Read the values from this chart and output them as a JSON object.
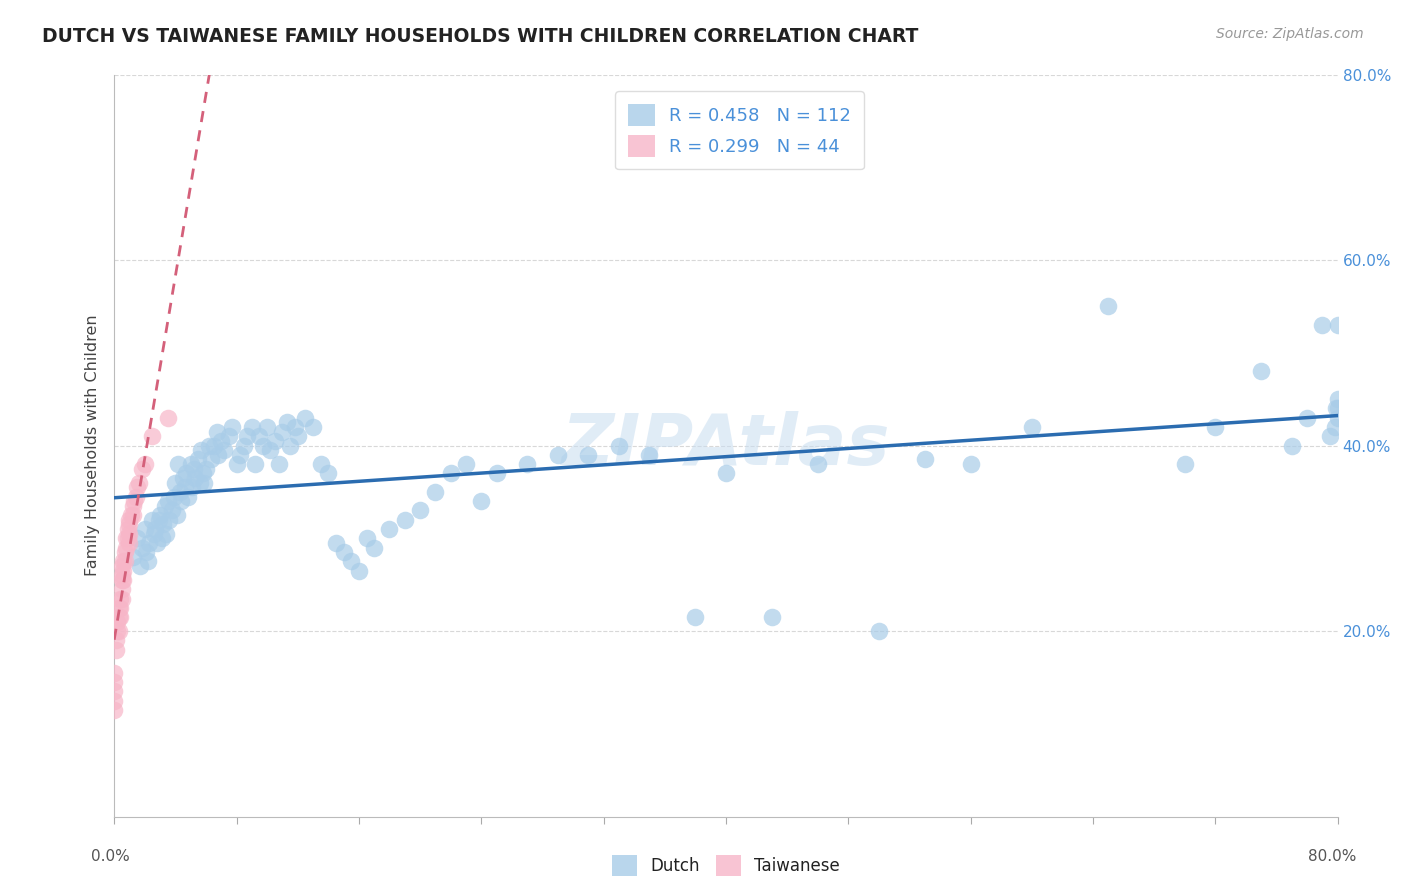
{
  "title": "DUTCH VS TAIWANESE FAMILY HOUSEHOLDS WITH CHILDREN CORRELATION CHART",
  "source": "Source: ZipAtlas.com",
  "ylabel": "Family Households with Children",
  "xlim": [
    0.0,
    0.8
  ],
  "ylim": [
    0.0,
    0.8
  ],
  "dutch_R": 0.458,
  "dutch_N": 112,
  "taiwanese_R": 0.299,
  "taiwanese_N": 44,
  "dutch_color": "#a8cce8",
  "taiwanese_color": "#f7b6c8",
  "dutch_line_color": "#2b6cb0",
  "taiwanese_line_color": "#d4607a",
  "watermark_color": "#c8ddf0",
  "ytick_color": "#4a90d9",
  "grid_color": "#d8d8d8",
  "dutch_seed": 42,
  "taiwanese_seed": 15,
  "dutch_x": [
    0.012,
    0.015,
    0.017,
    0.018,
    0.02,
    0.021,
    0.022,
    0.023,
    0.025,
    0.026,
    0.027,
    0.028,
    0.029,
    0.03,
    0.031,
    0.032,
    0.033,
    0.034,
    0.035,
    0.036,
    0.038,
    0.039,
    0.04,
    0.041,
    0.042,
    0.043,
    0.044,
    0.045,
    0.046,
    0.047,
    0.048,
    0.05,
    0.051,
    0.052,
    0.053,
    0.055,
    0.056,
    0.057,
    0.058,
    0.059,
    0.06,
    0.062,
    0.063,
    0.065,
    0.067,
    0.068,
    0.07,
    0.072,
    0.075,
    0.077,
    0.08,
    0.082,
    0.085,
    0.087,
    0.09,
    0.092,
    0.095,
    0.097,
    0.1,
    0.102,
    0.105,
    0.108,
    0.11,
    0.113,
    0.115,
    0.118,
    0.12,
    0.125,
    0.13,
    0.135,
    0.14,
    0.145,
    0.15,
    0.155,
    0.16,
    0.165,
    0.17,
    0.18,
    0.19,
    0.2,
    0.21,
    0.22,
    0.23,
    0.24,
    0.25,
    0.27,
    0.29,
    0.31,
    0.33,
    0.35,
    0.38,
    0.4,
    0.43,
    0.46,
    0.5,
    0.53,
    0.56,
    0.6,
    0.65,
    0.7,
    0.72,
    0.75,
    0.77,
    0.78,
    0.79,
    0.795,
    0.798,
    0.799,
    0.8,
    0.8,
    0.8,
    0.8
  ],
  "dutch_y": [
    0.28,
    0.3,
    0.27,
    0.29,
    0.31,
    0.285,
    0.275,
    0.295,
    0.32,
    0.305,
    0.31,
    0.295,
    0.32,
    0.325,
    0.3,
    0.315,
    0.335,
    0.305,
    0.34,
    0.32,
    0.33,
    0.345,
    0.36,
    0.325,
    0.38,
    0.35,
    0.34,
    0.365,
    0.355,
    0.37,
    0.345,
    0.38,
    0.355,
    0.375,
    0.365,
    0.385,
    0.36,
    0.395,
    0.37,
    0.36,
    0.375,
    0.4,
    0.385,
    0.4,
    0.415,
    0.39,
    0.405,
    0.395,
    0.41,
    0.42,
    0.38,
    0.39,
    0.4,
    0.41,
    0.42,
    0.38,
    0.41,
    0.4,
    0.42,
    0.395,
    0.405,
    0.38,
    0.415,
    0.425,
    0.4,
    0.42,
    0.41,
    0.43,
    0.42,
    0.38,
    0.37,
    0.295,
    0.285,
    0.275,
    0.265,
    0.3,
    0.29,
    0.31,
    0.32,
    0.33,
    0.35,
    0.37,
    0.38,
    0.34,
    0.37,
    0.38,
    0.39,
    0.39,
    0.4,
    0.39,
    0.215,
    0.37,
    0.215,
    0.38,
    0.2,
    0.385,
    0.38,
    0.42,
    0.55,
    0.38,
    0.42,
    0.48,
    0.4,
    0.43,
    0.53,
    0.41,
    0.42,
    0.44,
    0.53,
    0.44,
    0.43,
    0.45
  ],
  "taiwanese_x": [
    0.0,
    0.0,
    0.0,
    0.0,
    0.0,
    0.001,
    0.001,
    0.002,
    0.002,
    0.003,
    0.003,
    0.003,
    0.004,
    0.004,
    0.004,
    0.005,
    0.005,
    0.005,
    0.005,
    0.005,
    0.006,
    0.006,
    0.006,
    0.007,
    0.007,
    0.008,
    0.008,
    0.009,
    0.009,
    0.01,
    0.01,
    0.01,
    0.01,
    0.011,
    0.012,
    0.012,
    0.013,
    0.014,
    0.015,
    0.016,
    0.018,
    0.02,
    0.025,
    0.035
  ],
  "taiwanese_y": [
    0.155,
    0.145,
    0.135,
    0.125,
    0.115,
    0.19,
    0.18,
    0.21,
    0.2,
    0.225,
    0.215,
    0.2,
    0.235,
    0.225,
    0.215,
    0.27,
    0.26,
    0.255,
    0.245,
    0.235,
    0.275,
    0.265,
    0.255,
    0.285,
    0.275,
    0.3,
    0.29,
    0.31,
    0.3,
    0.32,
    0.315,
    0.305,
    0.295,
    0.325,
    0.335,
    0.325,
    0.34,
    0.345,
    0.355,
    0.36,
    0.375,
    0.38,
    0.41,
    0.43
  ]
}
